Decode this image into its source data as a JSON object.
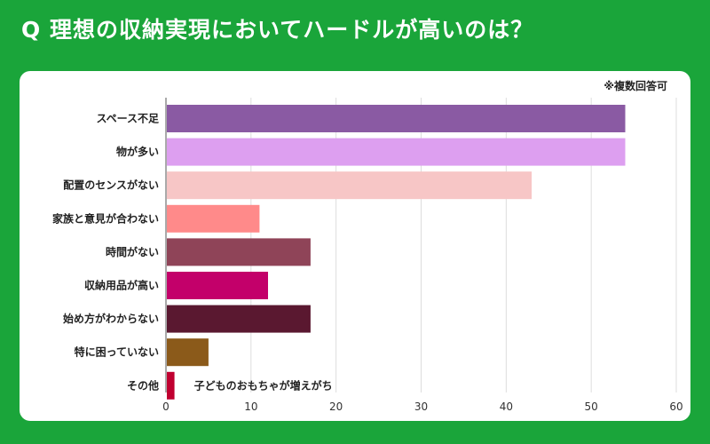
{
  "header": {
    "title": "Q 理想の収納実現においてハードルが高いのは？"
  },
  "note": "※複数回答可",
  "chart_data": {
    "type": "bar",
    "orientation": "horizontal",
    "categories": [
      "スペース不足",
      "物が多い",
      "配置のセンスがない",
      "家族と意見が合わない",
      "時間がない",
      "収納用品が高い",
      "始め方がわからない",
      "特に困っていない",
      "その他"
    ],
    "values": [
      54,
      54,
      43,
      11,
      17,
      12,
      17,
      5,
      1
    ],
    "colors": [
      "#8a5aa3",
      "#dd9ff0",
      "#f7c6c6",
      "#ff8a8a",
      "#8f4458",
      "#c3006a",
      "#5a1830",
      "#8b5a1a",
      "#c00030"
    ],
    "xlim": [
      0,
      60
    ],
    "xticks": [
      0,
      10,
      20,
      30,
      40,
      50,
      60
    ],
    "grid": true,
    "annotations": [
      {
        "category": "その他",
        "text": "子どものおもちゃが増えがち"
      }
    ]
  }
}
